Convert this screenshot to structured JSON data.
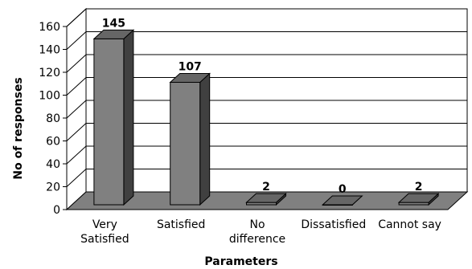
{
  "chart_data": {
    "type": "bar",
    "style": "3d-column",
    "title": "",
    "xlabel": "Parameters",
    "ylabel": "No of responses",
    "categories": [
      [
        "Very",
        "Satisfied"
      ],
      [
        "Satisfied"
      ],
      [
        "No",
        "difference"
      ],
      [
        "Dissatisfied"
      ],
      [
        "Cannot say"
      ]
    ],
    "values": [
      145,
      107,
      2,
      0,
      2
    ],
    "ylim": [
      0,
      160
    ],
    "yticks": [
      0,
      20,
      40,
      60,
      80,
      100,
      120,
      140,
      160
    ],
    "grid": true,
    "legend": "none",
    "colors": {
      "bar_front": "#808080",
      "bar_side": "#404040",
      "bar_top": "#666666",
      "floor": "#808080",
      "grid": "#000000"
    }
  }
}
